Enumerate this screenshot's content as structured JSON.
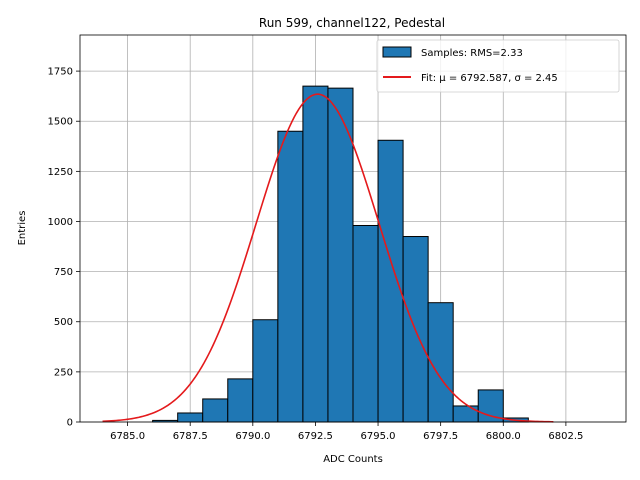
{
  "chart_data": {
    "type": "bar",
    "title": "Run 599, channel122, Pedestal",
    "xlabel": "ADC Counts",
    "ylabel": "Entries",
    "xlim": [
      6783.1,
      6804.9
    ],
    "ylim": [
      0,
      1930
    ],
    "xticks": [
      6785.0,
      6787.5,
      6790.0,
      6792.5,
      6795.0,
      6797.5,
      6800.0,
      6802.5
    ],
    "xtick_labels": [
      "6785.0",
      "6787.5",
      "6790.0",
      "6792.5",
      "6795.0",
      "6797.5",
      "6800.0",
      "6802.5"
    ],
    "yticks": [
      0,
      250,
      500,
      750,
      1000,
      1250,
      1500,
      1750
    ],
    "ytick_labels": [
      "0",
      "250",
      "500",
      "750",
      "1000",
      "1250",
      "1500",
      "1750"
    ],
    "grid": true,
    "legend_position": "top-right",
    "bin_width": 1,
    "bins": [
      {
        "left": 6786,
        "value": 8
      },
      {
        "left": 6787,
        "value": 45
      },
      {
        "left": 6788,
        "value": 115
      },
      {
        "left": 6789,
        "value": 215
      },
      {
        "left": 6790,
        "value": 510
      },
      {
        "left": 6791,
        "value": 1450
      },
      {
        "left": 6792,
        "value": 1675
      },
      {
        "left": 6793,
        "value": 1665
      },
      {
        "left": 6794,
        "value": 980
      },
      {
        "left": 6795,
        "value": 1405
      },
      {
        "left": 6796,
        "value": 925
      },
      {
        "left": 6797,
        "value": 595
      },
      {
        "left": 6798,
        "value": 80
      },
      {
        "left": 6799,
        "value": 160
      },
      {
        "left": 6800,
        "value": 20
      }
    ],
    "fit": {
      "mu": 6792.587,
      "sigma": 2.45,
      "amplitude": 1635,
      "x_range": [
        6784.0,
        6802.0
      ]
    },
    "series": [
      {
        "name": "Samples: RMS=2.33",
        "type": "bar",
        "color": "#1f77b4"
      },
      {
        "name": "Fit: μ = 6792.587, σ = 2.45",
        "type": "line",
        "color": "#e41a1c"
      }
    ]
  }
}
